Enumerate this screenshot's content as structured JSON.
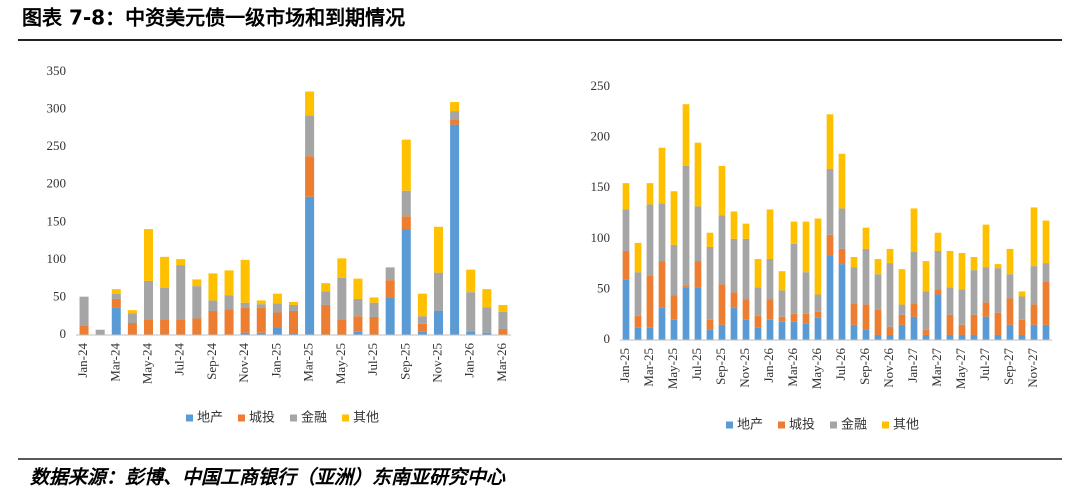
{
  "title": "图表 7-8：中资美元债一级市场和到期情况",
  "source": "数据来源：彭博、中国工商银行（亚洲）东南亚研究中心",
  "chart_data": [
    {
      "type": "stacked_bar",
      "grid": false,
      "legend": "bottom",
      "categories": [
        "Jan-24",
        null,
        "Mar-24",
        null,
        "May-24",
        null,
        "Jul-24",
        null,
        "Sep-24",
        null,
        "Nov-24",
        null,
        "Jan-25",
        null,
        "Mar-25",
        null,
        "May-25",
        null,
        "Jul-25",
        null,
        "Sep-25",
        null,
        "Nov-25",
        null,
        "Jan-26",
        null,
        "Mar-26"
      ],
      "ylim": [
        0,
        350
      ],
      "yticks": [
        0,
        50,
        100,
        150,
        200,
        250,
        300,
        350
      ],
      "series": [
        {
          "name": "地产",
          "color": "#5b9bd5",
          "values": [
            0,
            0,
            37,
            0,
            0,
            0,
            0,
            0,
            0,
            0,
            3,
            3,
            10,
            2,
            184,
            0,
            0,
            5,
            0,
            50,
            141,
            5,
            32,
            280,
            5,
            3,
            0
          ]
        },
        {
          "name": "城投",
          "color": "#ed7d31",
          "values": [
            13,
            0,
            11,
            16,
            20,
            21,
            20,
            22,
            32,
            34,
            33,
            33,
            20,
            30,
            54,
            40,
            20,
            20,
            24,
            23,
            17,
            10,
            0,
            7,
            0,
            0,
            8
          ]
        },
        {
          "name": "金融",
          "color": "#a5a5a5",
          "values": [
            38,
            7,
            7,
            13,
            52,
            42,
            73,
            43,
            14,
            19,
            7,
            5,
            12,
            8,
            54,
            18,
            56,
            23,
            19,
            17,
            34,
            10,
            51,
            11,
            52,
            34,
            23
          ]
        },
        {
          "name": "其他",
          "color": "#ffc000",
          "values": [
            0,
            0,
            6,
            4,
            69,
            41,
            8,
            9,
            36,
            33,
            57,
            5,
            13,
            4,
            32,
            11,
            26,
            27,
            7,
            0,
            68,
            30,
            61,
            12,
            30,
            24,
            9
          ]
        }
      ]
    },
    {
      "type": "stacked_bar",
      "grid": false,
      "legend": "bottom",
      "categories": [
        "Jan-25",
        null,
        "Mar-25",
        null,
        "May-25",
        null,
        "Jul-25",
        null,
        "Sep-25",
        null,
        "Nov-25",
        null,
        "Jan-26",
        null,
        "Mar-26",
        null,
        "May-26",
        null,
        "Jul-26",
        null,
        "Sep-26",
        null,
        "Nov-26",
        null,
        "Jan-27",
        null,
        "Mar-27",
        null,
        "May-27",
        null,
        "Jul-27",
        null,
        "Sep-27",
        null,
        "Nov-27",
        null
      ],
      "ylim": [
        0,
        250
      ],
      "yticks": [
        0,
        50,
        100,
        150,
        200,
        250
      ],
      "series": [
        {
          "name": "地产",
          "color": "#5b9bd5",
          "values": [
            60,
            12,
            12,
            32,
            20,
            52,
            52,
            10,
            15,
            32,
            20,
            12,
            20,
            18,
            18,
            16,
            22,
            83,
            75,
            15,
            10,
            5,
            5,
            15,
            23,
            5,
            45,
            5,
            5,
            5,
            23,
            5,
            15,
            5,
            15,
            15
          ]
        },
        {
          "name": "城投",
          "color": "#ed7d31",
          "values": [
            28,
            12,
            52,
            46,
            24,
            2,
            26,
            10,
            40,
            15,
            20,
            12,
            20,
            5,
            8,
            10,
            6,
            21,
            15,
            21,
            25,
            25,
            8,
            10,
            13,
            5,
            5,
            20,
            10,
            20,
            14,
            22,
            26,
            15,
            20,
            43
          ]
        },
        {
          "name": "金融",
          "color": "#a5a5a5",
          "values": [
            41,
            43,
            70,
            57,
            50,
            118,
            54,
            72,
            68,
            53,
            60,
            28,
            40,
            26,
            69,
            41,
            17,
            65,
            40,
            36,
            55,
            35,
            63,
            10,
            51,
            38,
            38,
            27,
            35,
            44,
            35,
            44,
            24,
            23,
            38,
            18
          ]
        },
        {
          "name": "其他",
          "color": "#ffc000",
          "values": [
            26,
            29,
            21,
            55,
            53,
            61,
            63,
            14,
            49,
            27,
            15,
            28,
            49,
            19,
            22,
            50,
            75,
            54,
            54,
            10,
            21,
            15,
            14,
            35,
            43,
            30,
            18,
            36,
            36,
            13,
            42,
            4,
            25,
            5,
            58,
            42
          ]
        }
      ]
    }
  ]
}
